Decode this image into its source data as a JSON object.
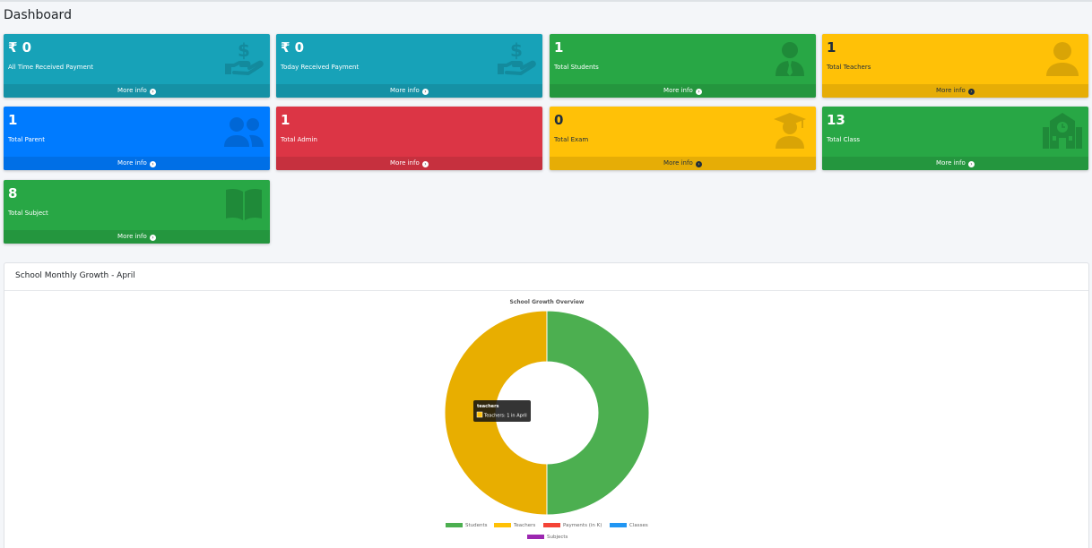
{
  "page": {
    "title": "Dashboard"
  },
  "boxes": [
    {
      "value": "₹ 0",
      "label": "All Time Received Payment",
      "more": "More info",
      "icon": "hand-dollar-icon",
      "color": "#17a2b8",
      "footer_color": "#1591a5",
      "icon_color": "#138a9d"
    },
    {
      "value": "₹ 0",
      "label": "Today Received Payment",
      "more": "More info",
      "icon": "hand-dollar-icon",
      "color": "#17a2b8",
      "footer_color": "#1591a5",
      "icon_color": "#138a9d"
    },
    {
      "value": "1",
      "label": "Total Students",
      "more": "More info",
      "icon": "student-icon",
      "color": "#28a745",
      "footer_color": "#24963e",
      "icon_color": "#1f8a39"
    },
    {
      "value": "1",
      "label": "Total Teachers",
      "more": "More info",
      "icon": "user-icon",
      "color": "#ffc107",
      "footer_color": "#e6ad06",
      "icon_color": "#d9a406"
    },
    {
      "value": "1",
      "label": "Total Parent",
      "more": "More info",
      "icon": "users-icon",
      "color": "#007bff",
      "footer_color": "#006fe6",
      "icon_color": "#0067d6"
    },
    {
      "value": "1",
      "label": "Total Admin",
      "more": "More info",
      "icon": "admin-icon",
      "color": "#dc3545",
      "footer_color": "#c6303e",
      "icon_color": "#dc3545"
    },
    {
      "value": "0",
      "label": "Total Exam",
      "more": "More info",
      "icon": "graduate-icon",
      "color": "#ffc107",
      "footer_color": "#e6ad06",
      "icon_color": "#d9a406"
    },
    {
      "value": "13",
      "label": "Total Class",
      "more": "More info",
      "icon": "school-icon",
      "color": "#28a745",
      "footer_color": "#24963e",
      "icon_color": "#1f8a39"
    },
    {
      "value": "8",
      "label": "Total Subject",
      "more": "More info",
      "icon": "book-icon",
      "color": "#28a745",
      "footer_color": "#24963e",
      "icon_color": "#1f8a39"
    }
  ],
  "growth_card": {
    "header": "School Monthly Growth - April"
  },
  "chart_data": {
    "type": "doughnut",
    "title": "School Growth Overview",
    "categories": [
      "Students",
      "Teachers",
      "Payments (in K)",
      "Classes",
      "Subjects"
    ],
    "values": [
      1,
      1,
      0,
      0,
      0
    ],
    "colors": [
      "#4caf50",
      "#ffc107",
      "#f44336",
      "#2196f3",
      "#9c27b0"
    ],
    "legend_position": "bottom",
    "tooltip": {
      "title": "Teachers",
      "text": "Teachers: 1 in April"
    }
  }
}
